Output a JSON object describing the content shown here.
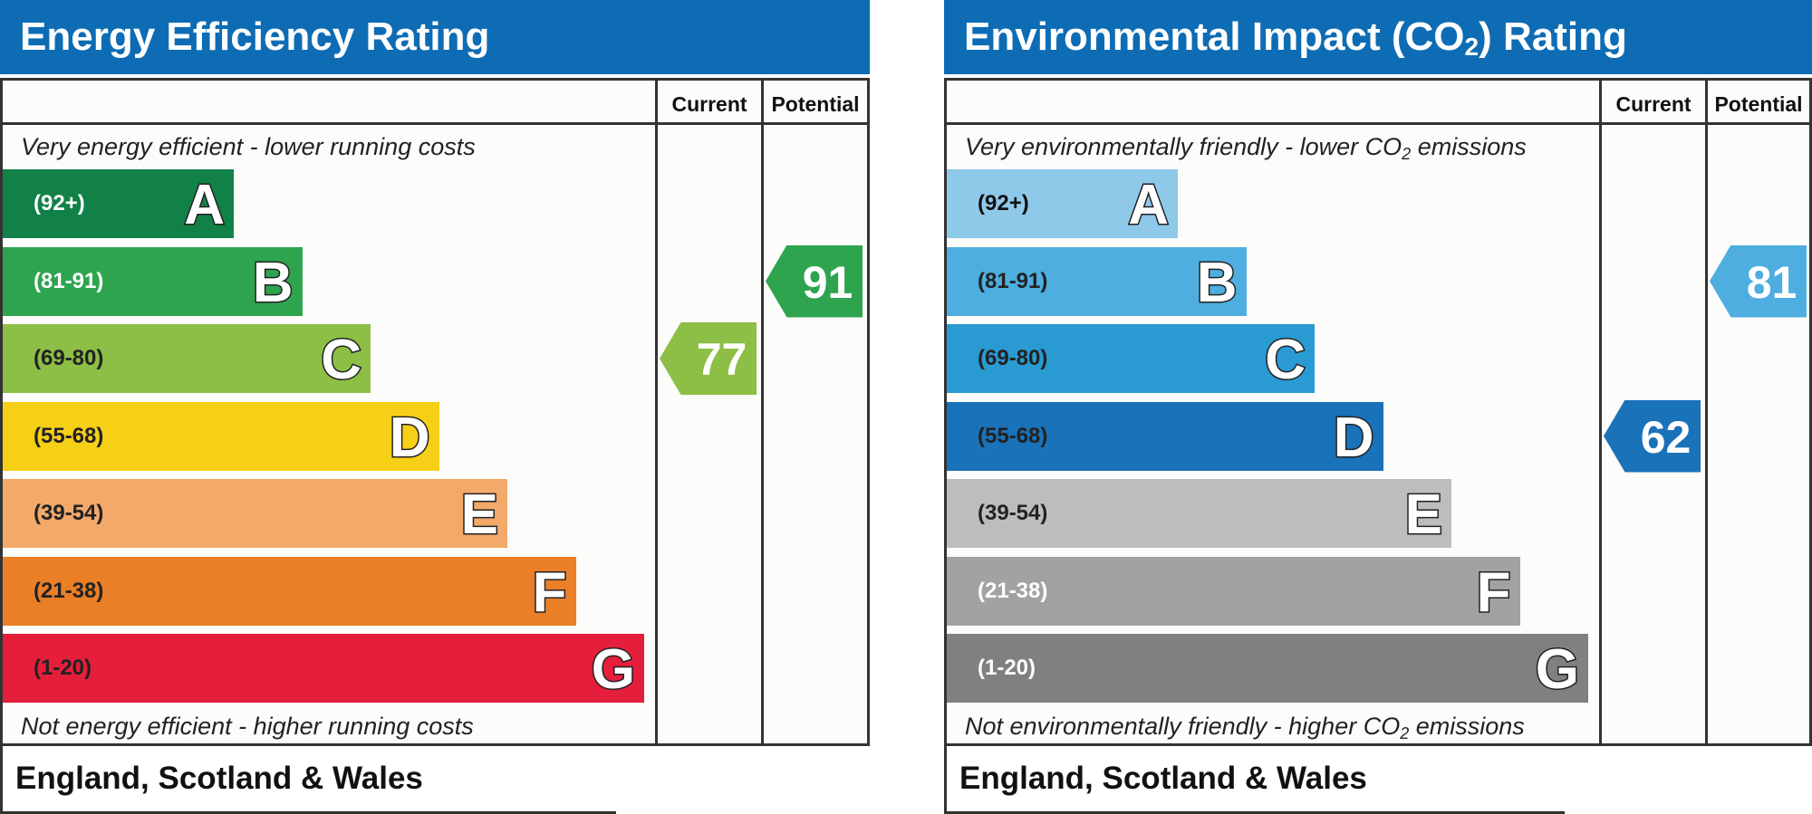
{
  "chart_data": [
    {
      "type": "table",
      "title_main": "Energy Efficiency Rating",
      "title_sub": "",
      "title_tail": "",
      "columns": [
        "Current",
        "Potential"
      ],
      "top_note": {
        "main": "Very energy efficient - lower running costs",
        "sub": "",
        "tail": ""
      },
      "bottom_note": {
        "main": "Not energy efficient - higher running costs",
        "sub": "",
        "tail": ""
      },
      "bands": [
        {
          "letter": "A",
          "range": "(92+)",
          "color": "#128148",
          "range_color": "#ffffff"
        },
        {
          "letter": "B",
          "range": "(81-91)",
          "color": "#2ea44f",
          "range_color": "#ffffff"
        },
        {
          "letter": "C",
          "range": "(69-80)",
          "color": "#8dbe45",
          "range_color": "#222222"
        },
        {
          "letter": "D",
          "range": "(55-68)",
          "color": "#f6cf17",
          "range_color": "#222222"
        },
        {
          "letter": "E",
          "range": "(39-54)",
          "color": "#f2a96a",
          "range_color": "#222222"
        },
        {
          "letter": "F",
          "range": "(21-38)",
          "color": "#eb7f27",
          "range_color": "#222222"
        },
        {
          "letter": "G",
          "range": "(1-20)",
          "color": "#e41e3b",
          "range_color": "#222222"
        }
      ],
      "current": {
        "value": 77,
        "color": "#8dbe45"
      },
      "potential": {
        "value": 91,
        "color": "#2ea44f"
      },
      "footer": "England, Scotland & Wales"
    },
    {
      "type": "table",
      "title_main": "Environmental Impact (CO",
      "title_sub": "2",
      "title_tail": ") Rating",
      "columns": [
        "Current",
        "Potential"
      ],
      "top_note": {
        "main": "Very environmentally friendly - lower CO",
        "sub": "2",
        "tail": " emissions"
      },
      "bottom_note": {
        "main": "Not environmentally friendly - higher CO",
        "sub": "2",
        "tail": " emissions"
      },
      "bands": [
        {
          "letter": "A",
          "range": "(92+)",
          "color": "#8fc9ea",
          "range_color": "#111111"
        },
        {
          "letter": "B",
          "range": "(81-91)",
          "color": "#4daedf",
          "range_color": "#222222"
        },
        {
          "letter": "C",
          "range": "(69-80)",
          "color": "#2a9ad3",
          "range_color": "#222222"
        },
        {
          "letter": "D",
          "range": "(55-68)",
          "color": "#1a72b9",
          "range_color": "#222222"
        },
        {
          "letter": "E",
          "range": "(39-54)",
          "color": "#bdbdbb",
          "range_color": "#222222"
        },
        {
          "letter": "F",
          "range": "(21-38)",
          "color": "#a2a2a2",
          "range_color": "#ffffff"
        },
        {
          "letter": "G",
          "range": "(1-20)",
          "color": "#808080",
          "range_color": "#ffffff"
        }
      ],
      "current": {
        "value": 62,
        "color": "#1a72b9"
      },
      "potential": {
        "value": 81,
        "color": "#4daedf"
      },
      "footer": "England, Scotland & Wales"
    }
  ]
}
